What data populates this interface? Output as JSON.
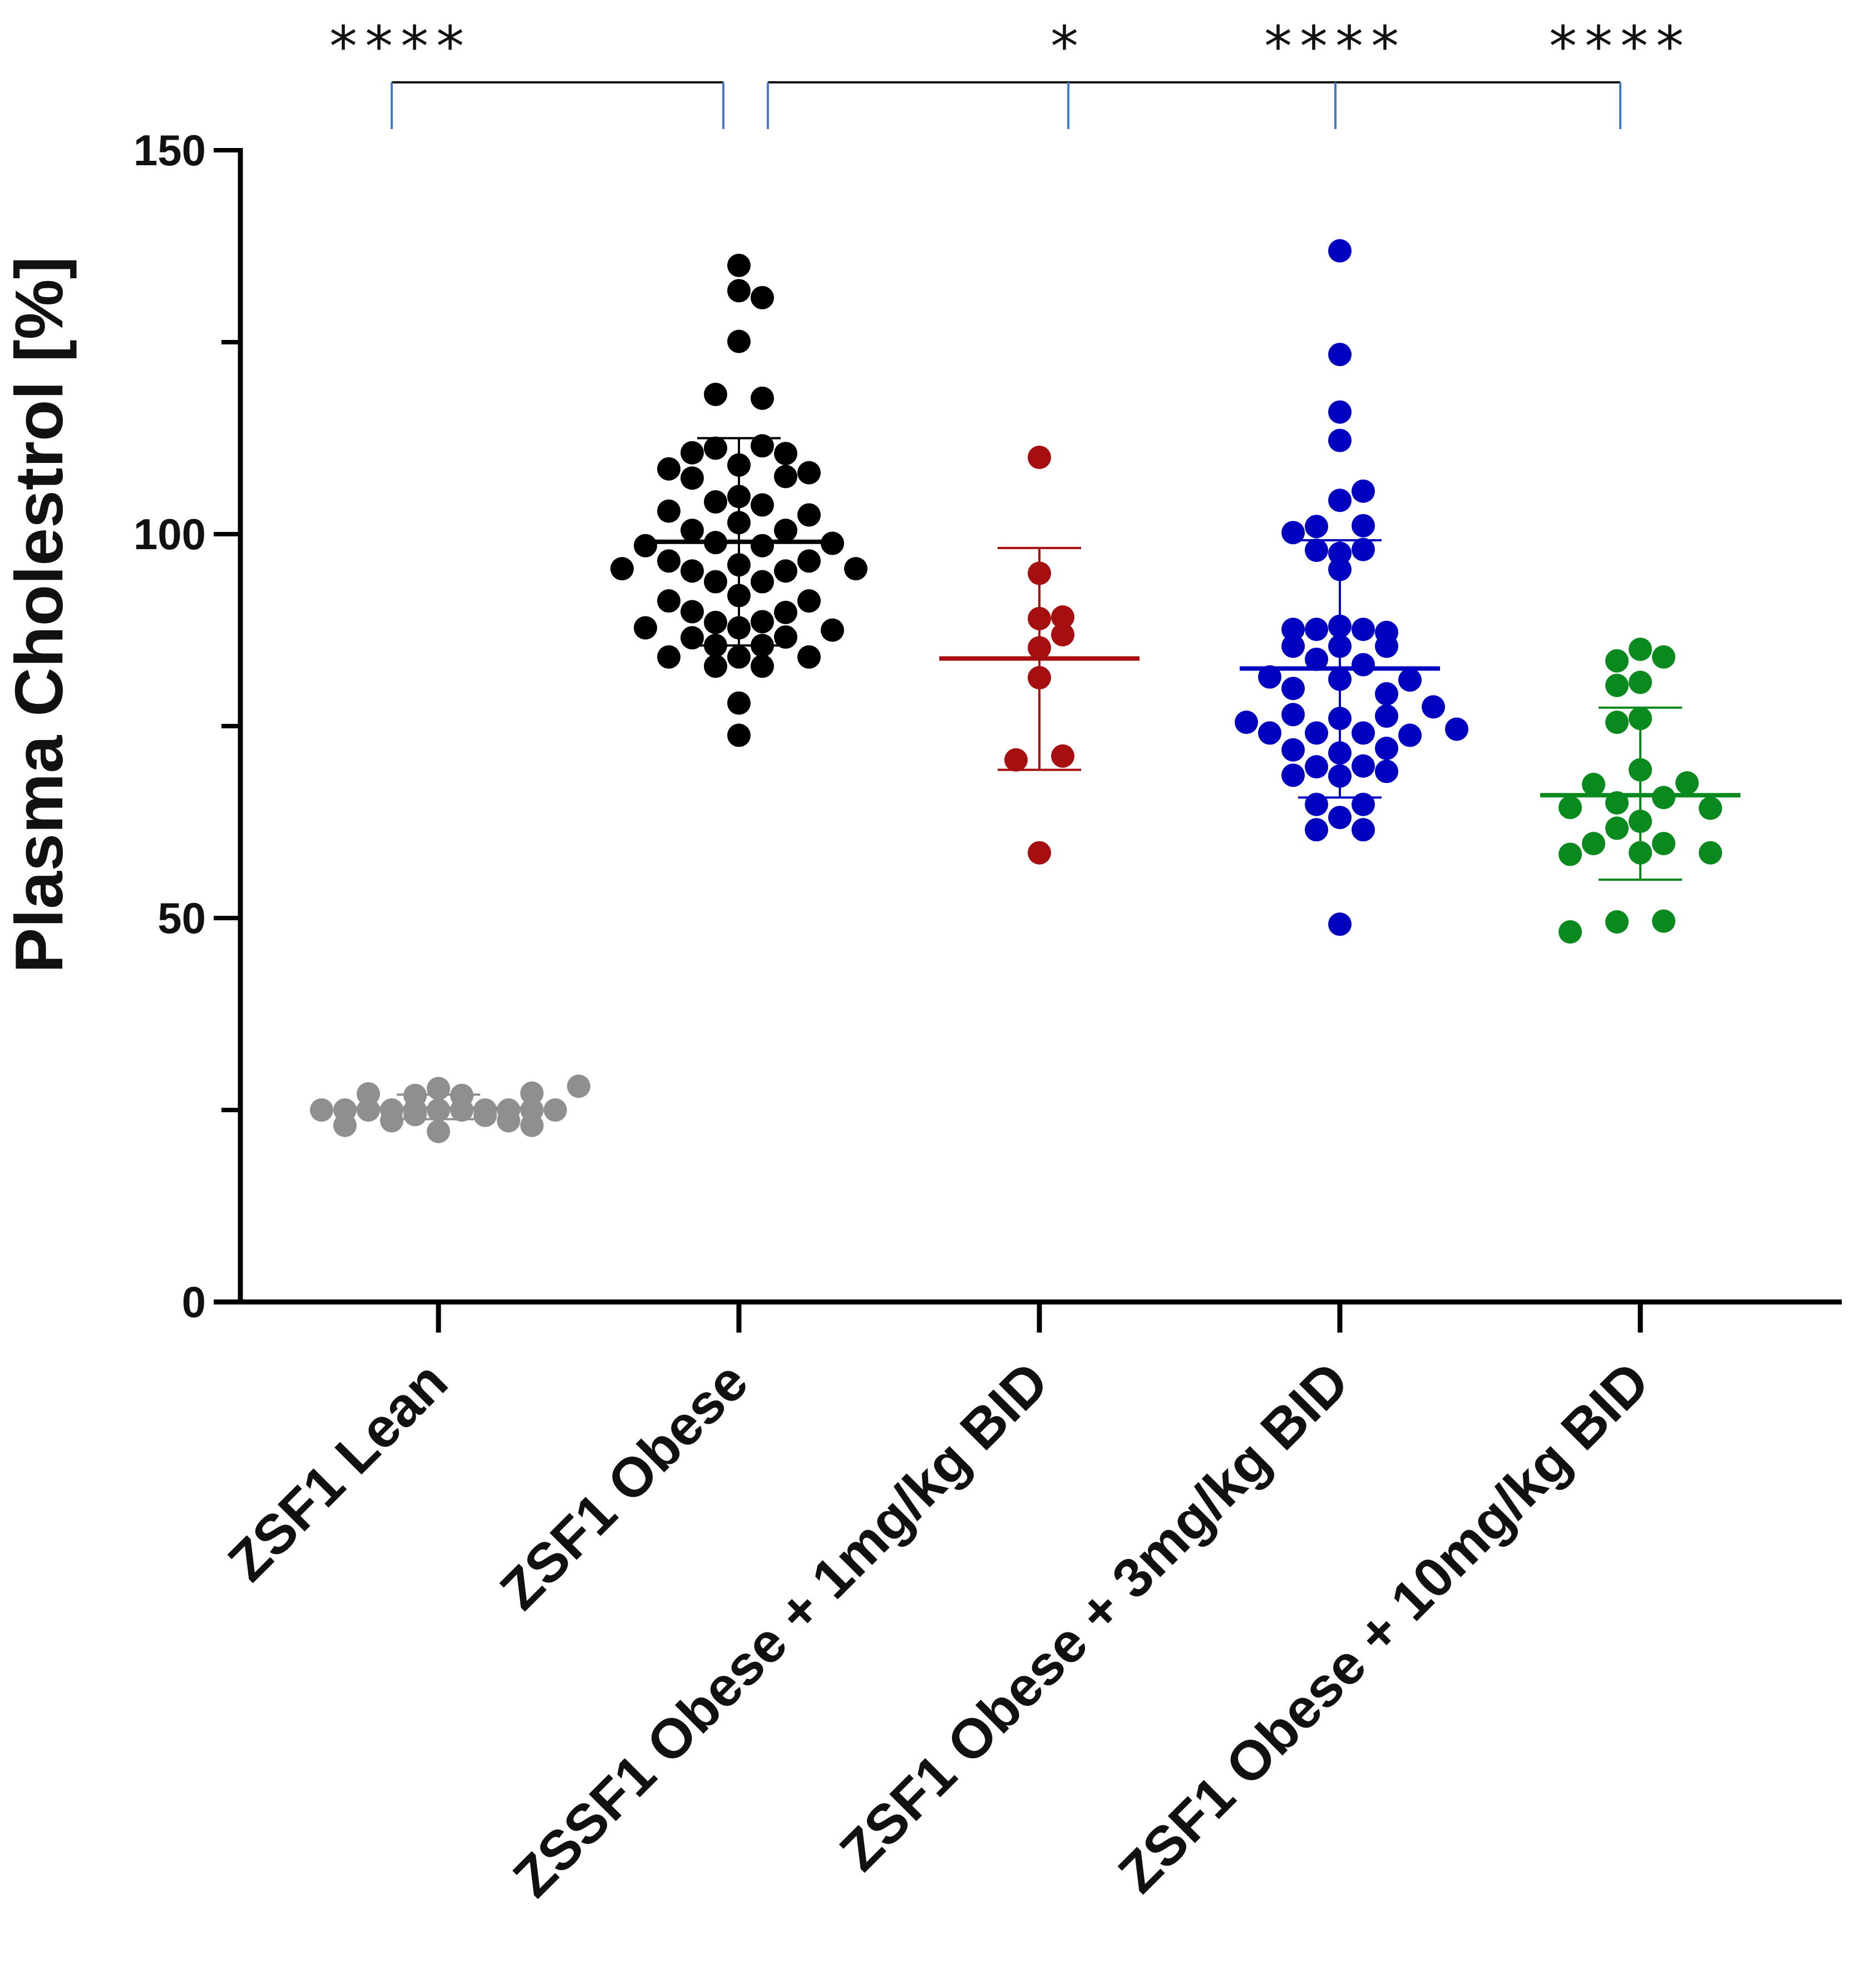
{
  "chart_data": {
    "type": "scatter",
    "title": "",
    "xlabel": "",
    "ylabel": "Plasma Cholestrol [%]",
    "ylim": [
      0,
      150
    ],
    "yticks": [
      0,
      50,
      100,
      150
    ],
    "categories": [
      "ZSF1 Lean",
      "ZSF1 Obese",
      "ZSSF1 Obese + 1mg/kg BID",
      "ZSF1 Obese + 3mg/kg BID",
      "ZSF1 Obese + 10mg/kg BID"
    ],
    "series": [
      {
        "name": "ZSF1 Lean",
        "color": "#8f8f8f",
        "mean": 25.2,
        "sd_low": 23.8,
        "sd_high": 27.0,
        "points": [
          {
            "offset": 0,
            "value": 25.0
          },
          {
            "offset": -1,
            "value": 25.0
          },
          {
            "offset": 1,
            "value": 25.0
          },
          {
            "offset": -2,
            "value": 25.0
          },
          {
            "offset": 2,
            "value": 25.0
          },
          {
            "offset": -3,
            "value": 25.0
          },
          {
            "offset": 3,
            "value": 25.0
          },
          {
            "offset": -4,
            "value": 25.0
          },
          {
            "offset": 4,
            "value": 25.0
          },
          {
            "offset": -5,
            "value": 25.0
          },
          {
            "offset": 5,
            "value": 25.0
          },
          {
            "offset": -1,
            "value": 26.9
          },
          {
            "offset": 1,
            "value": 26.9
          },
          {
            "offset": -3,
            "value": 27.1
          },
          {
            "offset": 0,
            "value": 27.8
          },
          {
            "offset": 4,
            "value": 27.2
          },
          {
            "offset": -1,
            "value": 24.4
          },
          {
            "offset": 2,
            "value": 24.3
          },
          {
            "offset": -2,
            "value": 23.6
          },
          {
            "offset": 3,
            "value": 23.6
          },
          {
            "offset": -4,
            "value": 23.0
          },
          {
            "offset": 4,
            "value": 23.0
          },
          {
            "offset": 0,
            "value": 22.2
          },
          {
            "offset": 6,
            "value": 28.1
          }
        ]
      },
      {
        "name": "ZSF1 Obese",
        "color": "#000000",
        "mean": 99.0,
        "sd_low": 85.5,
        "sd_high": 112.5,
        "points": [
          {
            "offset": 0,
            "value": 135.0
          },
          {
            "offset": 0,
            "value": 131.7
          },
          {
            "offset": 1,
            "value": 130.8
          },
          {
            "offset": 0,
            "value": 125.1
          },
          {
            "offset": -1,
            "value": 118.2
          },
          {
            "offset": 1,
            "value": 117.7
          },
          {
            "offset": -1,
            "value": 111.2
          },
          {
            "offset": 1,
            "value": 111.5
          },
          {
            "offset": -2,
            "value": 110.6
          },
          {
            "offset": 2,
            "value": 110.5
          },
          {
            "offset": 0,
            "value": 109.0
          },
          {
            "offset": -3,
            "value": 108.5
          },
          {
            "offset": 3,
            "value": 108.0
          },
          {
            "offset": -2,
            "value": 107.3
          },
          {
            "offset": 2,
            "value": 107.5
          },
          {
            "offset": 0,
            "value": 104.9
          },
          {
            "offset": -1,
            "value": 104.2
          },
          {
            "offset": 1,
            "value": 103.8
          },
          {
            "offset": -3,
            "value": 103.0
          },
          {
            "offset": 3,
            "value": 102.5
          },
          {
            "offset": 0,
            "value": 101.5
          },
          {
            "offset": -2,
            "value": 100.5
          },
          {
            "offset": 2,
            "value": 100.5
          },
          {
            "offset": -4,
            "value": 98.5
          },
          {
            "offset": -1,
            "value": 98.9
          },
          {
            "offset": 1,
            "value": 98.5
          },
          {
            "offset": 4,
            "value": 98.8
          },
          {
            "offset": -3,
            "value": 96.5
          },
          {
            "offset": 0,
            "value": 96.0
          },
          {
            "offset": 3,
            "value": 96.5
          },
          {
            "offset": -5,
            "value": 95.5
          },
          {
            "offset": -2,
            "value": 95.2
          },
          {
            "offset": 2,
            "value": 95.2
          },
          {
            "offset": 5,
            "value": 95.5
          },
          {
            "offset": -1,
            "value": 93.8
          },
          {
            "offset": 1,
            "value": 93.8
          },
          {
            "offset": 0,
            "value": 92.0
          },
          {
            "offset": -3,
            "value": 91.3
          },
          {
            "offset": 3,
            "value": 91.3
          },
          {
            "offset": -2,
            "value": 89.9
          },
          {
            "offset": 2,
            "value": 89.8
          },
          {
            "offset": -1,
            "value": 88.5
          },
          {
            "offset": 1,
            "value": 88.6
          },
          {
            "offset": -4,
            "value": 87.8
          },
          {
            "offset": 0,
            "value": 87.8
          },
          {
            "offset": 4,
            "value": 87.5
          },
          {
            "offset": -2,
            "value": 86.5
          },
          {
            "offset": 2,
            "value": 86.6
          },
          {
            "offset": -1,
            "value": 85.5
          },
          {
            "offset": 1,
            "value": 85.5
          },
          {
            "offset": -3,
            "value": 84.0
          },
          {
            "offset": 0,
            "value": 84.0
          },
          {
            "offset": 3,
            "value": 84.0
          },
          {
            "offset": -1,
            "value": 82.8
          },
          {
            "offset": 1,
            "value": 82.8
          },
          {
            "offset": 0,
            "value": 78.0
          },
          {
            "offset": 0,
            "value": 73.8
          }
        ]
      },
      {
        "name": "ZSSF1 Obese + 1mg/kg BID",
        "color": "#a50f0f",
        "mean": 83.8,
        "sd_low": 69.3,
        "sd_high": 98.2,
        "points": [
          {
            "offset": 0,
            "value": 110.0
          },
          {
            "offset": 0,
            "value": 94.9
          },
          {
            "offset": 0,
            "value": 89.0
          },
          {
            "offset": 1,
            "value": 89.2
          },
          {
            "offset": 1,
            "value": 86.9
          },
          {
            "offset": 0,
            "value": 85.2
          },
          {
            "offset": 0,
            "value": 81.3
          },
          {
            "offset": -1,
            "value": 70.6
          },
          {
            "offset": 1,
            "value": 71.1
          },
          {
            "offset": 0,
            "value": 58.5
          }
        ]
      },
      {
        "name": "ZSF1 Obese + 3mg/kg BID",
        "color": "#0000c0",
        "mean": 82.5,
        "sd_low": 65.7,
        "sd_high": 99.2,
        "points": [
          {
            "offset": 0,
            "value": 136.9
          },
          {
            "offset": 0,
            "value": 123.4
          },
          {
            "offset": 0,
            "value": 115.9
          },
          {
            "offset": 0,
            "value": 112.2
          },
          {
            "offset": 1,
            "value": 105.6
          },
          {
            "offset": 0,
            "value": 104.4
          },
          {
            "offset": -1,
            "value": 101.0
          },
          {
            "offset": -2,
            "value": 100.2
          },
          {
            "offset": 1,
            "value": 101.1
          },
          {
            "offset": -1,
            "value": 97.9
          },
          {
            "offset": 0,
            "value": 97.5
          },
          {
            "offset": 1,
            "value": 98.0
          },
          {
            "offset": 0,
            "value": 95.4
          },
          {
            "offset": -2,
            "value": 87.6
          },
          {
            "offset": -1,
            "value": 87.6
          },
          {
            "offset": 0,
            "value": 88.0
          },
          {
            "offset": 1,
            "value": 87.6
          },
          {
            "offset": 2,
            "value": 87.2
          },
          {
            "offset": -2,
            "value": 85.4
          },
          {
            "offset": 0,
            "value": 85.4
          },
          {
            "offset": 2,
            "value": 85.4
          },
          {
            "offset": -1,
            "value": 83.7
          },
          {
            "offset": 1,
            "value": 83.0
          },
          {
            "offset": -3,
            "value": 81.4
          },
          {
            "offset": 0,
            "value": 81.1
          },
          {
            "offset": 3,
            "value": 81.0
          },
          {
            "offset": -2,
            "value": 79.9
          },
          {
            "offset": 2,
            "value": 79.2
          },
          {
            "offset": -4,
            "value": 75.5
          },
          {
            "offset": -2,
            "value": 76.5
          },
          {
            "offset": 0,
            "value": 76.0
          },
          {
            "offset": 2,
            "value": 76.3
          },
          {
            "offset": 4,
            "value": 77.5
          },
          {
            "offset": -3,
            "value": 74.1
          },
          {
            "offset": -1,
            "value": 74.1
          },
          {
            "offset": 1,
            "value": 74.1
          },
          {
            "offset": 3,
            "value": 73.8
          },
          {
            "offset": 5,
            "value": 74.6
          },
          {
            "offset": -2,
            "value": 71.9
          },
          {
            "offset": 0,
            "value": 71.5
          },
          {
            "offset": 2,
            "value": 72.1
          },
          {
            "offset": -1,
            "value": 69.7
          },
          {
            "offset": 1,
            "value": 69.8
          },
          {
            "offset": -2,
            "value": 68.6
          },
          {
            "offset": 0,
            "value": 68.5
          },
          {
            "offset": 2,
            "value": 69.1
          },
          {
            "offset": -1,
            "value": 64.8
          },
          {
            "offset": 1,
            "value": 64.8
          },
          {
            "offset": 0,
            "value": 63.1
          },
          {
            "offset": -1,
            "value": 61.5
          },
          {
            "offset": 1,
            "value": 61.5
          },
          {
            "offset": 0,
            "value": 49.2
          }
        ]
      },
      {
        "name": "ZSF1 Obese + 10mg/kg BID",
        "color": "#0a8a1e",
        "mean": 66.0,
        "sd_low": 55.0,
        "sd_high": 77.4,
        "points": [
          {
            "offset": 0,
            "value": 85.0
          },
          {
            "offset": -1,
            "value": 83.5
          },
          {
            "offset": 1,
            "value": 84.0
          },
          {
            "offset": -1,
            "value": 80.3
          },
          {
            "offset": 0,
            "value": 80.7
          },
          {
            "offset": -1,
            "value": 75.5
          },
          {
            "offset": 0,
            "value": 76.0
          },
          {
            "offset": 0,
            "value": 69.3
          },
          {
            "offset": -2,
            "value": 67.4
          },
          {
            "offset": 2,
            "value": 67.6
          },
          {
            "offset": -1,
            "value": 65.0
          },
          {
            "offset": 1,
            "value": 65.7
          },
          {
            "offset": -3,
            "value": 64.4
          },
          {
            "offset": 3,
            "value": 64.3
          },
          {
            "offset": 0,
            "value": 62.6
          },
          {
            "offset": -1,
            "value": 61.7
          },
          {
            "offset": -2,
            "value": 59.7
          },
          {
            "offset": 1,
            "value": 59.7
          },
          {
            "offset": -3,
            "value": 58.3
          },
          {
            "offset": 0,
            "value": 58.5
          },
          {
            "offset": 3,
            "value": 58.5
          },
          {
            "offset": -1,
            "value": 49.5
          },
          {
            "offset": 1,
            "value": 49.6
          },
          {
            "offset": -3,
            "value": 48.2
          }
        ]
      }
    ],
    "significance": [
      {
        "from": 0,
        "to": 1,
        "label": "****"
      },
      {
        "from": 1,
        "to": 2,
        "label": "*"
      },
      {
        "from": 1,
        "to": 3,
        "label": "****"
      },
      {
        "from": 1,
        "to": 4,
        "label": "****"
      }
    ]
  }
}
